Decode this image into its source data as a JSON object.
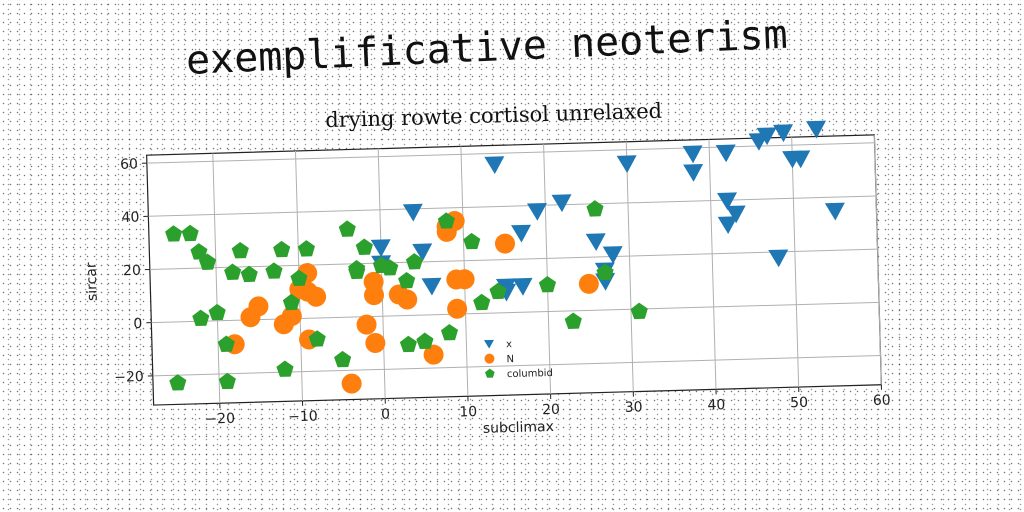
{
  "figure_title": "exemplificative neoterism",
  "chart_data": {
    "type": "scatter",
    "title": "drying rowte cortisol unrelaxed",
    "xlabel": "subclimax",
    "ylabel": "sircar",
    "xlim": [
      -28,
      60
    ],
    "ylim": [
      -31,
      63
    ],
    "xticks": [
      -20,
      -10,
      0,
      10,
      20,
      30,
      40,
      50,
      60
    ],
    "yticks": [
      -20,
      0,
      20,
      40,
      60
    ],
    "grid": true,
    "legend_position": "lower-center",
    "series": [
      {
        "name": "x",
        "marker": "triangle-down",
        "color": "#1f77b4",
        "points": [
          [
            14,
            56
          ],
          [
            30,
            55
          ],
          [
            38,
            58
          ],
          [
            38,
            51
          ],
          [
            42,
            58
          ],
          [
            46,
            62
          ],
          [
            47,
            64
          ],
          [
            49,
            65
          ],
          [
            53,
            66
          ],
          [
            50,
            55
          ],
          [
            51,
            55
          ],
          [
            42,
            40
          ],
          [
            43,
            35
          ],
          [
            42,
            31
          ],
          [
            55,
            35
          ],
          [
            48,
            18
          ],
          [
            26,
            26
          ],
          [
            28,
            21
          ],
          [
            27,
            15
          ],
          [
            27,
            11
          ],
          [
            19,
            38
          ],
          [
            17,
            30
          ],
          [
            22,
            41
          ],
          [
            4,
            39
          ],
          [
            5,
            24
          ],
          [
            0,
            26
          ],
          [
            0,
            20
          ],
          [
            6,
            11
          ],
          [
            15,
            10
          ],
          [
            17,
            10
          ],
          [
            15,
            8
          ]
        ]
      },
      {
        "name": "N",
        "marker": "circle",
        "color": "#ff7f0e",
        "points": [
          [
            8,
            31
          ],
          [
            8,
            33
          ],
          [
            9,
            35
          ],
          [
            15,
            26
          ],
          [
            10,
            13
          ],
          [
            9,
            13
          ],
          [
            -1,
            13
          ],
          [
            -1,
            8
          ],
          [
            2,
            8
          ],
          [
            3,
            6
          ],
          [
            9,
            2
          ],
          [
            -9,
            10
          ],
          [
            -8,
            8
          ],
          [
            -9,
            17
          ],
          [
            -10,
            11
          ],
          [
            -12,
            -2
          ],
          [
            -11,
            1
          ],
          [
            -16,
            1
          ],
          [
            -15,
            5
          ],
          [
            -18,
            -9
          ],
          [
            -9,
            -8
          ],
          [
            -2,
            -3
          ],
          [
            -1,
            -10
          ],
          [
            6,
            -15
          ],
          [
            -4,
            -25
          ],
          [
            25,
            10
          ]
        ]
      },
      {
        "name": "columbid",
        "marker": "pentagon",
        "color": "#2ca02c",
        "points": [
          [
            -25,
            33
          ],
          [
            -23,
            33
          ],
          [
            -22,
            26
          ],
          [
            -21,
            22
          ],
          [
            -17,
            26
          ],
          [
            -16,
            17
          ],
          [
            -18,
            18
          ],
          [
            -13,
            18
          ],
          [
            -12,
            26
          ],
          [
            -9,
            26
          ],
          [
            -4,
            33
          ],
          [
            -2,
            26
          ],
          [
            -3,
            17
          ],
          [
            -3,
            18
          ],
          [
            0,
            19
          ],
          [
            1,
            18
          ],
          [
            3,
            13
          ],
          [
            4,
            20
          ],
          [
            8,
            35
          ],
          [
            11,
            27
          ],
          [
            12,
            4
          ],
          [
            14,
            8
          ],
          [
            20,
            10
          ],
          [
            26,
            38
          ],
          [
            27,
            14
          ],
          [
            31,
            -1
          ],
          [
            23,
            -4
          ],
          [
            8,
            -7
          ],
          [
            5,
            -10
          ],
          [
            3,
            -11
          ],
          [
            -8,
            -8
          ],
          [
            -11,
            6
          ],
          [
            -10,
            15
          ],
          [
            -20,
            3
          ],
          [
            -22,
            1
          ],
          [
            -19,
            -9
          ],
          [
            -19,
            -23
          ],
          [
            -12,
            -19
          ],
          [
            -5,
            -16
          ],
          [
            -25,
            -23
          ]
        ]
      }
    ]
  }
}
